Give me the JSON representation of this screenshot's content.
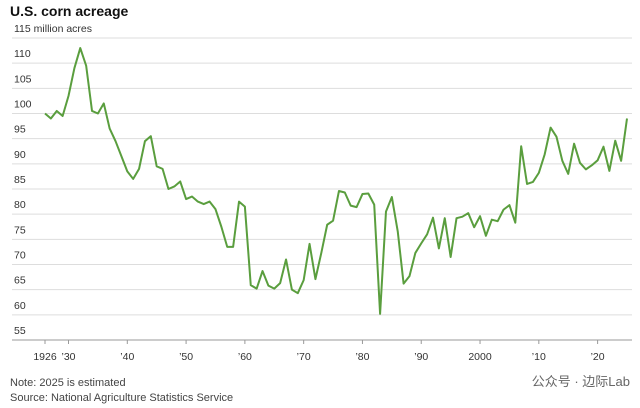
{
  "chart_data": {
    "type": "line",
    "title": "U.S. corn acreage",
    "x": [
      1926,
      1927,
      1928,
      1929,
      1930,
      1931,
      1932,
      1933,
      1934,
      1935,
      1936,
      1937,
      1938,
      1939,
      1940,
      1941,
      1942,
      1943,
      1944,
      1945,
      1946,
      1947,
      1948,
      1949,
      1950,
      1951,
      1952,
      1953,
      1954,
      1955,
      1956,
      1957,
      1958,
      1959,
      1960,
      1961,
      1962,
      1963,
      1964,
      1965,
      1966,
      1967,
      1968,
      1969,
      1970,
      1971,
      1972,
      1973,
      1974,
      1975,
      1976,
      1977,
      1978,
      1979,
      1980,
      1981,
      1982,
      1983,
      1984,
      1985,
      1986,
      1987,
      1988,
      1989,
      1990,
      1991,
      1992,
      1993,
      1994,
      1995,
      1996,
      1997,
      1998,
      1999,
      2000,
      2001,
      2002,
      2003,
      2004,
      2005,
      2006,
      2007,
      2008,
      2009,
      2010,
      2011,
      2012,
      2013,
      2014,
      2015,
      2016,
      2017,
      2018,
      2019,
      2020,
      2021,
      2022,
      2023,
      2024,
      2025
    ],
    "series": [
      {
        "color": "#5a9e3e",
        "values": [
          100,
          99,
          100.5,
          99.5,
          103.5,
          109,
          113,
          109.5,
          100.5,
          100,
          102,
          97,
          94.5,
          91.5,
          88.5,
          87,
          89,
          94.5,
          95.5,
          89.5,
          89,
          85,
          85.5,
          86.5,
          83,
          83.5,
          82.5,
          82,
          82.5,
          81,
          77.5,
          73.5,
          73.5,
          82.5,
          81.5,
          65.9,
          65.2,
          68.7,
          65.8,
          65.2,
          66.3,
          71,
          65,
          64.3,
          66.9,
          74.1,
          67.1,
          72.3,
          77.9,
          78.7,
          84.6,
          84.3,
          81.7,
          81.4,
          84,
          84.1,
          81.9,
          60.2,
          80.5,
          83.4,
          76.6,
          66.2,
          67.7,
          72.3,
          74.2,
          76,
          79.3,
          73.2,
          79.2,
          71.5,
          79.2,
          79.5,
          80.2,
          77.4,
          79.6,
          75.7,
          78.9,
          78.6,
          80.9,
          81.8,
          78.3,
          93.5,
          86,
          86.4,
          88.2,
          91.9,
          97.2,
          95.4,
          90.6,
          88,
          94,
          90.2,
          88.9,
          89.7,
          90.7,
          93.4,
          88.6,
          94.6,
          90.6,
          99
        ]
      }
    ],
    "xlim": [
      1926,
      2025
    ],
    "xticks": [
      1926,
      {
        "value": 1930,
        "label": "’30"
      },
      {
        "value": 1940,
        "label": "’40"
      },
      {
        "value": 1950,
        "label": "’50"
      },
      {
        "value": 1960,
        "label": "’60"
      },
      {
        "value": 1970,
        "label": "’70"
      },
      {
        "value": 1980,
        "label": "’80"
      },
      {
        "value": 1990,
        "label": "’90"
      },
      2000,
      {
        "value": 2010,
        "label": "’10"
      },
      {
        "value": 2020,
        "label": "’20"
      }
    ],
    "ylim": [
      55,
      115
    ],
    "yticks": [
      55,
      60,
      65,
      70,
      75,
      80,
      85,
      90,
      95,
      100,
      105,
      110,
      {
        "value": 115,
        "label": "115 million acres"
      }
    ],
    "grid": true,
    "note": "Note: 2025 is estimated",
    "source": "Source: National Agriculture Statistics Service",
    "watermark": "公众号 · 边际Lab"
  }
}
